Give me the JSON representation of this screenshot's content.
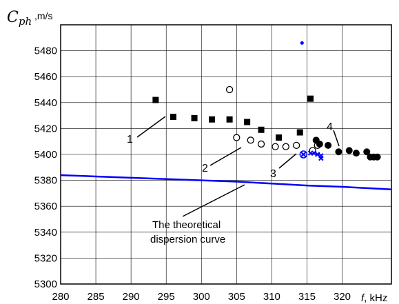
{
  "chart_data": {
    "type": "scatter",
    "ylabel": {
      "symbol": "C",
      "subscript": "ph",
      "unit": " ,m/s"
    },
    "xlabel": {
      "symbol": "f",
      "unit": ", kHz"
    },
    "xlim": [
      280,
      327
    ],
    "ylim": [
      5300,
      5500
    ],
    "x_ticks": [
      280,
      285,
      290,
      295,
      300,
      305,
      310,
      315,
      320
    ],
    "y_ticks": [
      5300,
      5320,
      5340,
      5360,
      5380,
      5400,
      5420,
      5440,
      5460,
      5480
    ],
    "grid": true,
    "series": [
      {
        "marker": "square-filled",
        "color": "#000000",
        "points": [
          [
            293.5,
            5442
          ],
          [
            296,
            5429
          ],
          [
            299,
            5428
          ],
          [
            301.5,
            5427
          ],
          [
            304,
            5427
          ],
          [
            306.5,
            5425
          ],
          [
            308.5,
            5419
          ],
          [
            311,
            5413
          ],
          [
            314,
            5417
          ],
          [
            315.5,
            5443
          ]
        ]
      },
      {
        "marker": "circle-open",
        "color": "#000000",
        "points": [
          [
            304,
            5450
          ],
          [
            305,
            5413
          ],
          [
            307,
            5411
          ],
          [
            308.5,
            5408
          ],
          [
            310.5,
            5406
          ],
          [
            312,
            5406
          ],
          [
            313.5,
            5407
          ],
          [
            315.8,
            5403
          ],
          [
            316.5,
            5407
          ]
        ]
      },
      {
        "marker": "circle-filled",
        "color": "#000000",
        "points": [
          [
            316.3,
            5411
          ],
          [
            316.8,
            5408
          ],
          [
            318,
            5407
          ],
          [
            319.5,
            5402
          ],
          [
            321,
            5403
          ],
          [
            322,
            5401
          ],
          [
            323.5,
            5402
          ],
          [
            324,
            5398
          ],
          [
            324.5,
            5398
          ],
          [
            325,
            5398
          ]
        ]
      },
      {
        "marker": "cross",
        "color": "#0000ff",
        "points": [
          [
            314.5,
            5400
          ],
          [
            315.5,
            5401
          ],
          [
            316,
            5401
          ],
          [
            316.5,
            5400
          ],
          [
            317,
            5399
          ],
          [
            317,
            5397
          ]
        ]
      },
      {
        "marker": "dot",
        "color": "#0000ff",
        "points": [
          [
            314.3,
            5486
          ]
        ]
      },
      {
        "marker": "ring",
        "color": "#0000ff",
        "points": [
          [
            314.5,
            5400
          ]
        ]
      }
    ],
    "theoretical_curve": {
      "color": "#0000ff",
      "x": [
        280,
        285,
        290,
        295,
        300,
        305,
        310,
        315,
        320,
        327
      ],
      "y": [
        5384,
        5383,
        5382,
        5381,
        5380,
        5379,
        5377.5,
        5376,
        5375,
        5373
      ]
    },
    "annotations": {
      "label_1": "1",
      "label_2": "2",
      "label_3": "3",
      "label_4": "4",
      "curve_label_line1": "The   theoretical",
      "curve_label_line2": "dispersion curve"
    }
  }
}
